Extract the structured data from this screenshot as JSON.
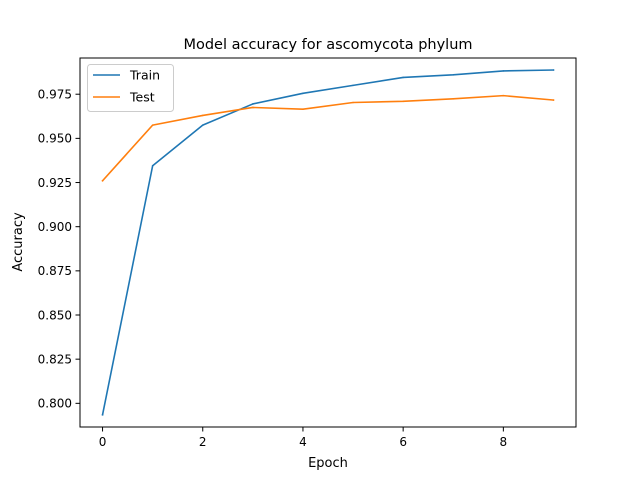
{
  "chart_data": {
    "type": "line",
    "title": "Model accuracy for ascomycota phylum",
    "xlabel": "Epoch",
    "ylabel": "Accuracy",
    "x": [
      0,
      1,
      2,
      3,
      4,
      5,
      6,
      7,
      8,
      9
    ],
    "xlim": [
      -0.45,
      9.45
    ],
    "ylim": [
      0.7866,
      0.9955
    ],
    "xticks": [
      0,
      2,
      4,
      6,
      8
    ],
    "yticks": [
      0.8,
      0.825,
      0.85,
      0.875,
      0.9,
      0.925,
      0.95,
      0.975
    ],
    "xtick_labels": [
      "0",
      "2",
      "4",
      "6",
      "8"
    ],
    "ytick_labels": [
      "0.800",
      "0.825",
      "0.850",
      "0.875",
      "0.900",
      "0.925",
      "0.950",
      "0.975"
    ],
    "grid": false,
    "legend_position": "top-left",
    "series": [
      {
        "name": "Train",
        "color": "#1f77b4",
        "values": [
          0.7935,
          0.9345,
          0.9575,
          0.9695,
          0.9755,
          0.98,
          0.9845,
          0.986,
          0.9882,
          0.9887
        ]
      },
      {
        "name": "Test",
        "color": "#ff7f0e",
        "values": [
          0.926,
          0.9575,
          0.963,
          0.9675,
          0.9665,
          0.9703,
          0.971,
          0.9724,
          0.9742,
          0.9717
        ]
      }
    ]
  }
}
